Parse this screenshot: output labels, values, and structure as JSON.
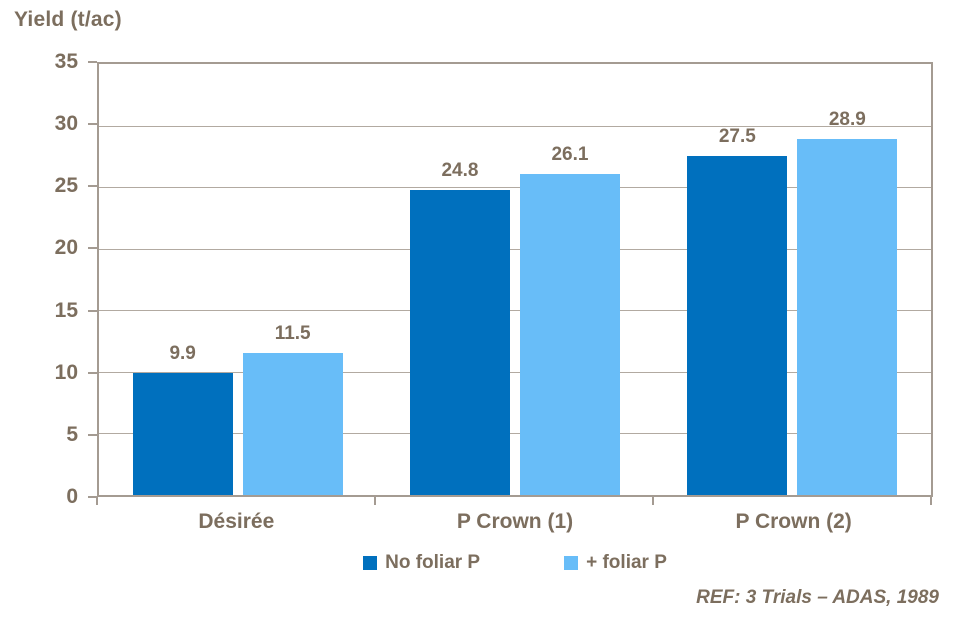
{
  "chart": {
    "title": "Yield (t/ac)",
    "ref": "REF: 3 Trials – ADAS, 1989"
  },
  "chart_data": {
    "type": "bar",
    "title": "Yield (t/ac)",
    "categories": [
      "Désirée",
      "P Crown (1)",
      "P Crown (2)"
    ],
    "series": [
      {
        "name": "No foliar P",
        "color": "#0070BE",
        "values": [
          9.9,
          24.8,
          27.5
        ]
      },
      {
        "name": "+ foliar P",
        "color": "#68BDF8",
        "values": [
          11.5,
          26.1,
          28.9
        ]
      }
    ],
    "xlabel": "",
    "ylabel": "Yield (t/ac)",
    "ylim": [
      0,
      35
    ],
    "ytick_step": 5,
    "grid": "horizontal",
    "legend_position": "bottom",
    "annotation": "REF: 3 Trials – ADAS, 1989",
    "value_labels_shown": true
  },
  "colors": {
    "bar_dark_blue": "#0070BE",
    "bar_light_blue": "#68BDF8",
    "text_brown": "#7C6E5E",
    "axis_border": "#A49B92",
    "gridline": "#B2AAA1",
    "background": "#FFFFFF"
  }
}
